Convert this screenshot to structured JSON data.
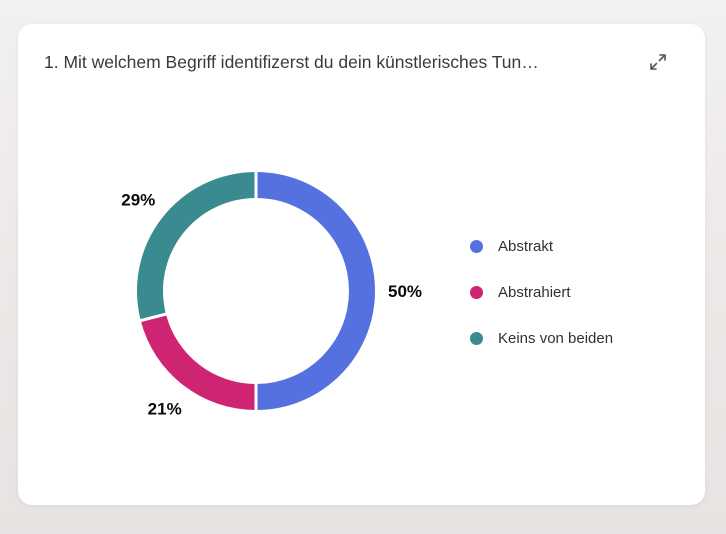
{
  "card": {
    "title": "1. Mit welchem Begriff identifizerst du dein künstlerisches Tun…",
    "expand_icon": "expand-diagonal-arrows"
  },
  "chart_data": {
    "type": "pie",
    "variant": "donut",
    "title": "1. Mit welchem Begriff identifizerst du dein künstlerisches Tun…",
    "legend_position": "right",
    "labels_outside": true,
    "segments": [
      {
        "label": "Abstrakt",
        "value": 50,
        "display": "50%",
        "color": "#5571E0"
      },
      {
        "label": "Abstrahiert",
        "value": 21,
        "display": "21%",
        "color": "#CE2472"
      },
      {
        "label": "Keins von beiden",
        "value": 29,
        "display": "29%",
        "color": "#3A8B90"
      }
    ]
  },
  "colors": {
    "card_background": "#FFFFFF",
    "page_background": "#ECE8E7",
    "title_text": "#3B3A39",
    "legend_text": "#323130",
    "value_label_text": "#0A0A0A"
  }
}
